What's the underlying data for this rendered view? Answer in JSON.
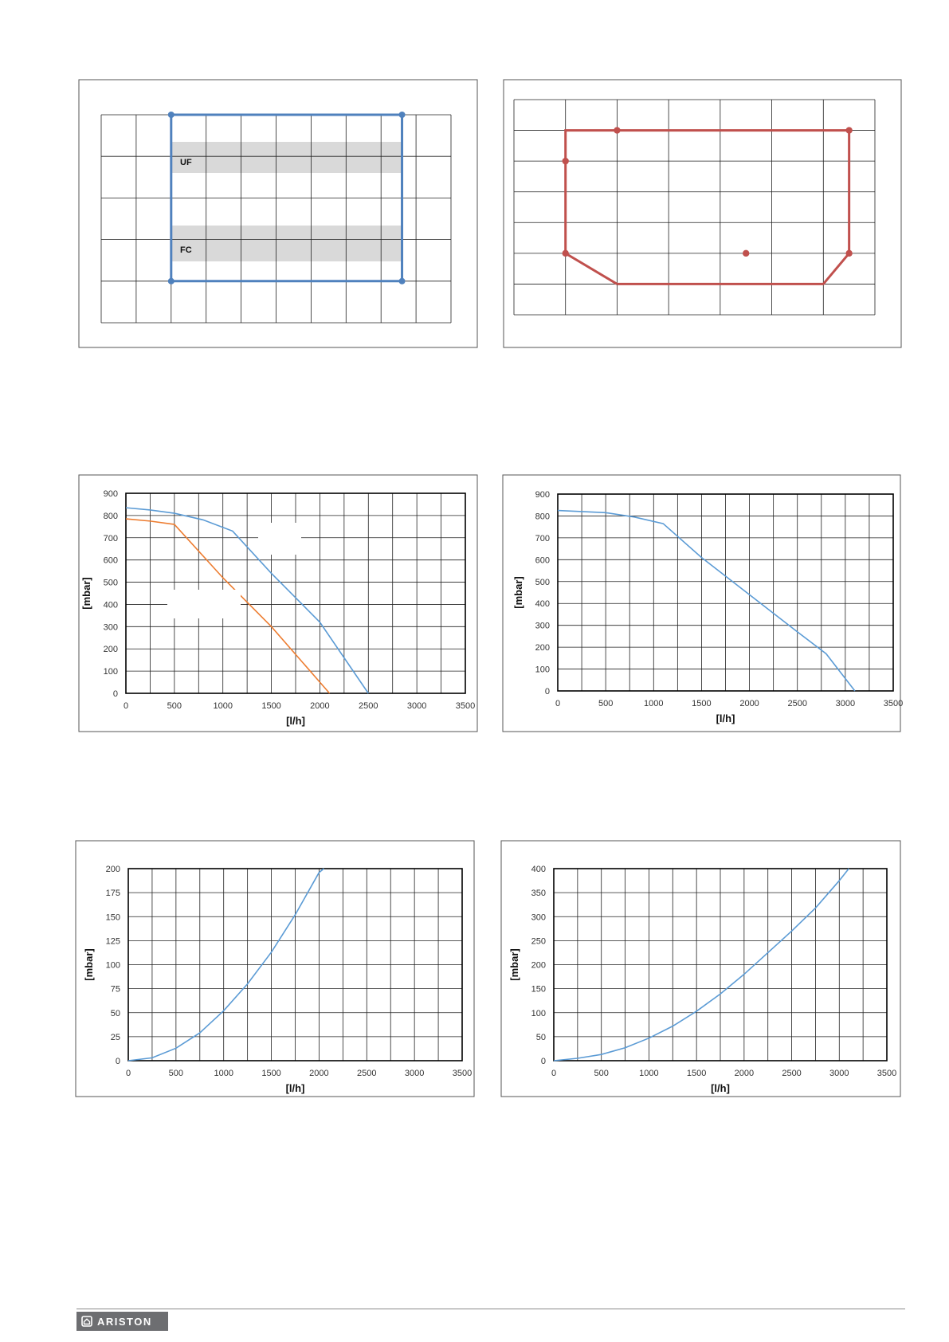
{
  "colors": {
    "blue": "#5b9bd5",
    "orange": "#ed7d31",
    "red": "#c0504d",
    "envelope_blue": "#4f81bd",
    "band": "#d9d9d9",
    "footer_bg": "#6d6e71"
  },
  "chart_data": [
    {
      "type": "line",
      "description_role": "operating-envelope-left",
      "zones": [
        {
          "label": "UF"
        },
        {
          "label": "FC"
        }
      ],
      "series": [
        {
          "points": [
            [
              2,
              1
            ],
            [
              8.6,
              1
            ],
            [
              8.6,
              5
            ],
            [
              2,
              5
            ],
            [
              2,
              1
            ]
          ]
        }
      ],
      "grid": true,
      "xlim": [
        0,
        10
      ],
      "ylim": [
        0,
        5
      ]
    },
    {
      "type": "line",
      "description_role": "operating-envelope-right",
      "series": [
        {
          "points": [
            [
              2,
              1
            ],
            [
              6,
              1
            ],
            [
              6.5,
              2
            ],
            [
              6.5,
              6
            ],
            [
              1,
              6
            ],
            [
              1,
              5
            ],
            [
              1,
              2
            ],
            [
              2,
              1
            ]
          ]
        }
      ],
      "grid": true,
      "xlim": [
        0,
        7
      ],
      "ylim": [
        0,
        7
      ]
    },
    {
      "type": "line",
      "ylabel": "[mbar]",
      "xlabel": "[l/h]",
      "xticks": [
        "0",
        "500",
        "1000",
        "1500",
        "2000",
        "2500",
        "3000",
        "3500"
      ],
      "yticks": [
        "0",
        "100",
        "200",
        "300",
        "400",
        "500",
        "600",
        "700",
        "800",
        "900"
      ],
      "xlim": [
        0,
        3500
      ],
      "ylim": [
        0,
        900
      ],
      "series": [
        {
          "color": "blue",
          "points": [
            [
              0,
              835
            ],
            [
              250,
              825
            ],
            [
              500,
              810
            ],
            [
              800,
              780
            ],
            [
              1100,
              730
            ],
            [
              1500,
              540
            ],
            [
              2000,
              320
            ],
            [
              2500,
              0
            ]
          ]
        },
        {
          "color": "orange",
          "points": [
            [
              0,
              785
            ],
            [
              250,
              775
            ],
            [
              500,
              760
            ],
            [
              1000,
              520
            ],
            [
              1500,
              300
            ],
            [
              2100,
              0
            ]
          ]
        }
      ]
    },
    {
      "type": "line",
      "ylabel": "[mbar]",
      "xlabel": "[l/h]",
      "xticks": [
        "0",
        "500",
        "1000",
        "1500",
        "2000",
        "2500",
        "3000",
        "3500"
      ],
      "yticks": [
        "0",
        "100",
        "200",
        "300",
        "400",
        "500",
        "600",
        "700",
        "800",
        "900"
      ],
      "xlim": [
        0,
        3500
      ],
      "ylim": [
        0,
        900
      ],
      "series": [
        {
          "color": "blue",
          "points": [
            [
              0,
              825
            ],
            [
              500,
              815
            ],
            [
              800,
              795
            ],
            [
              1100,
              765
            ],
            [
              1500,
              610
            ],
            [
              2000,
              440
            ],
            [
              2500,
              270
            ],
            [
              2800,
              170
            ],
            [
              3100,
              0
            ]
          ]
        }
      ]
    },
    {
      "type": "line",
      "ylabel": "[mbar]",
      "xlabel": "[l/h]",
      "xticks": [
        "0",
        "500",
        "1000",
        "1500",
        "2000",
        "2500",
        "3000",
        "3500"
      ],
      "yticks": [
        "0",
        "25",
        "50",
        "75",
        "100",
        "125",
        "150",
        "175",
        "200"
      ],
      "xlim": [
        0,
        3500
      ],
      "ylim": [
        0,
        200
      ],
      "series": [
        {
          "color": "blue",
          "points": [
            [
              0,
              0
            ],
            [
              250,
              3
            ],
            [
              500,
              13
            ],
            [
              750,
              29
            ],
            [
              1000,
              52
            ],
            [
              1250,
              80
            ],
            [
              1500,
              113
            ],
            [
              1750,
              152
            ],
            [
              2000,
              196
            ],
            [
              2050,
              200
            ]
          ]
        }
      ]
    },
    {
      "type": "line",
      "ylabel": "[mbar]",
      "xlabel": "[l/h]",
      "xticks": [
        "0",
        "500",
        "1000",
        "1500",
        "2000",
        "2500",
        "3000",
        "3500"
      ],
      "yticks": [
        "0",
        "50",
        "100",
        "150",
        "200",
        "250",
        "300",
        "350",
        "400"
      ],
      "xlim": [
        0,
        3500
      ],
      "ylim": [
        0,
        400
      ],
      "series": [
        {
          "color": "blue",
          "points": [
            [
              0,
              0
            ],
            [
              250,
              5
            ],
            [
              500,
              13
            ],
            [
              750,
              27
            ],
            [
              1000,
              47
            ],
            [
              1250,
              72
            ],
            [
              1500,
              103
            ],
            [
              1750,
              139
            ],
            [
              2000,
              180
            ],
            [
              2250,
              225
            ],
            [
              2500,
              270
            ],
            [
              2750,
              318
            ],
            [
              3000,
              375
            ],
            [
              3100,
              400
            ]
          ]
        }
      ]
    }
  ],
  "footer": {
    "brand": "ARISTON",
    "logo_icon": "house-icon"
  }
}
